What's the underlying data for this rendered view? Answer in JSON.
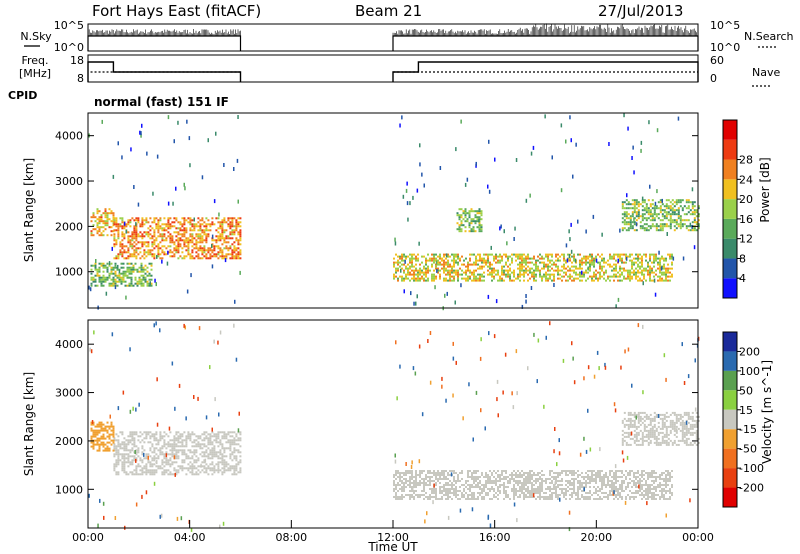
{
  "header": {
    "station": "Fort Hays East (fitACF)",
    "beam": "Beam 21",
    "date": "27/Jul/2013"
  },
  "side_labels": {
    "nsky": "N.Sky",
    "freq_line1": "Freq.",
    "freq_line2": "[MHz]",
    "cpid": "CPID",
    "nsearch": "N.Search",
    "nave": "Nave"
  },
  "mode_label": "normal (fast) 151 IF",
  "chart_data": [
    {
      "type": "line",
      "name": "noise-panel",
      "ylabel_left": "N.Sky",
      "ylabel_right": "N.Search",
      "yticks_left": [
        "10^5",
        "10^0"
      ],
      "yticks_right": [
        "10^5",
        "10^0"
      ],
      "segments_hours": [
        [
          0.0,
          6.0
        ],
        [
          12.0,
          24.0
        ]
      ]
    },
    {
      "type": "line",
      "name": "frequency-nave-panel",
      "ylabel_left": "Freq. [MHz]",
      "ylabel_right": "Nave",
      "yticks_left": [
        "18",
        "8"
      ],
      "yticks_right": [
        "60",
        "0"
      ],
      "freq_steps": [
        {
          "x": [
            0.0,
            1.0
          ],
          "level": "high"
        },
        {
          "x": [
            1.0,
            6.0
          ],
          "level": "low"
        },
        {
          "x": [
            12.0,
            13.0
          ],
          "level": "low"
        },
        {
          "x": [
            13.0,
            24.0
          ],
          "level": "high"
        }
      ]
    },
    {
      "type": "heatmap",
      "name": "power-panel",
      "ylabel": "Slant Range [km]",
      "yticks": [
        1000,
        2000,
        3000,
        4000
      ],
      "ylim": [
        200,
        4500
      ],
      "xlim": [
        0,
        24
      ],
      "colorbar": {
        "label": "Power [dB]",
        "ticks": [
          "4",
          "8",
          "12",
          "16",
          "20",
          "24",
          "28"
        ],
        "colors": [
          "#1010ff",
          "#2255aa",
          "#3a8a6a",
          "#5aaa5a",
          "#9ad04a",
          "#f0c020",
          "#f08020",
          "#ee3b12",
          "#e00000"
        ]
      },
      "bands": [
        {
          "x0": 0.1,
          "x1": 1.0,
          "y0": 1800,
          "y1": 2400,
          "power": 20
        },
        {
          "x0": 1.0,
          "x1": 6.0,
          "y0": 1300,
          "y1": 2200,
          "power": 22
        },
        {
          "x0": 0.1,
          "x1": 2.5,
          "y0": 700,
          "y1": 1200,
          "power": 14
        },
        {
          "x0": 12.0,
          "x1": 23.0,
          "y0": 800,
          "y1": 1400,
          "power": 18
        },
        {
          "x0": 14.5,
          "x1": 15.5,
          "y0": 1900,
          "y1": 2400,
          "power": 14
        },
        {
          "x0": 21.0,
          "x1": 24.0,
          "y0": 1900,
          "y1": 2600,
          "power": 14
        }
      ]
    },
    {
      "type": "heatmap",
      "name": "velocity-panel",
      "ylabel": "Slant Range [km]",
      "yticks": [
        1000,
        2000,
        3000,
        4000
      ],
      "ylim": [
        200,
        4500
      ],
      "xlim": [
        0,
        24
      ],
      "xlabel": "Time UT",
      "xticks": [
        "00:00",
        "04:00",
        "08:00",
        "12:00",
        "16:00",
        "20:00",
        "00:00"
      ],
      "colorbar": {
        "label": "Velocity [m s^-1]",
        "ticks": [
          "200",
          "100",
          "50",
          "15",
          "-15",
          "-50",
          "-100",
          "-200"
        ],
        "colors": [
          "#1a2a9a",
          "#2a6ab0",
          "#5aa050",
          "#8ad040",
          "#c8c8c0",
          "#f0a030",
          "#f07020",
          "#e84010",
          "#e00000"
        ]
      },
      "bands": [
        {
          "x0": 1.0,
          "x1": 6.0,
          "y0": 1300,
          "y1": 2200,
          "velocity": 0
        },
        {
          "x0": 0.1,
          "x1": 1.0,
          "y0": 1800,
          "y1": 2400,
          "velocity": -20
        },
        {
          "x0": 12.0,
          "x1": 23.0,
          "y0": 800,
          "y1": 1400,
          "velocity": 0
        },
        {
          "x0": 21.0,
          "x1": 24.0,
          "y0": 1900,
          "y1": 2600,
          "velocity": 0
        }
      ]
    }
  ]
}
